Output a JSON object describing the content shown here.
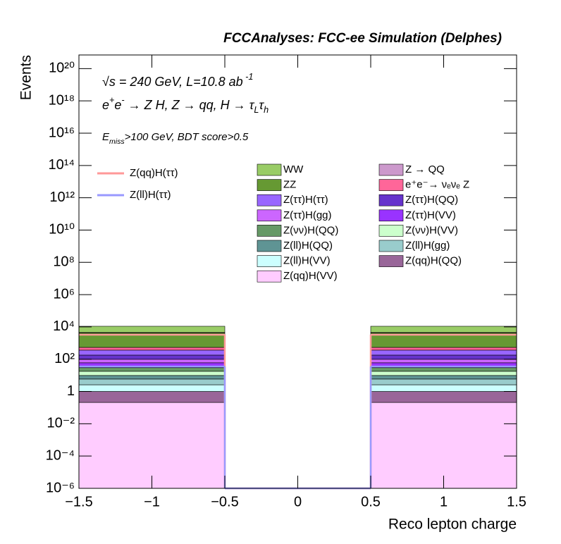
{
  "chart_data": {
    "type": "stacked_histogram",
    "title": "FCCAnalyses: FCC-ee Simulation (Delphes)",
    "annotations": [
      [
        {
          "text": "√s = 240 GeV, L=10.8 ab"
        },
        {
          "text": " -1",
          "sup": true
        }
      ],
      [
        {
          "text": "e"
        },
        {
          "text": "+",
          "sup": true
        },
        {
          "text": "e"
        },
        {
          "text": "-",
          "sup": true
        },
        {
          "text": " → Z H, Z  → qq, H  → τ"
        },
        {
          "text": "L",
          "sub": true
        },
        {
          "text": "τ"
        },
        {
          "text": "h",
          "sub": true
        }
      ],
      [
        {
          "text": "E"
        },
        {
          "text": "miss",
          "sub": true
        },
        {
          "text": ">100 GeV, BDT score>0.5"
        }
      ]
    ],
    "x_label": "Reco lepton charge",
    "y_label": "Events",
    "log_y": true,
    "bins": [
      -1.5,
      -0.5,
      0.5,
      1.5
    ],
    "xlim": [
      -1.5,
      1.5
    ],
    "xticks": [
      {
        "value": -1.5,
        "label": "−1.5"
      },
      {
        "value": -1,
        "label": "−1"
      },
      {
        "value": -0.5,
        "label": "−0.5"
      },
      0,
      0.5,
      1,
      1.5
    ],
    "ylim": [
      1e-06,
      7e+20
    ],
    "yticks": [
      {
        "value": 1e-06,
        "label": "10⁻⁶"
      },
      {
        "value": 0.0001,
        "label": "10⁻⁴"
      },
      {
        "value": 0.01,
        "label": "10⁻²"
      },
      1,
      {
        "value": 100,
        "label": "10²"
      },
      {
        "value": 10000,
        "label": "10⁴"
      },
      {
        "value": 1000000.0,
        "label": "10⁶"
      },
      {
        "value": 100000000.0,
        "label": "10⁸"
      },
      {
        "value": 10000000000.0,
        "label": "10¹⁰"
      },
      {
        "value": 1000000000000.0,
        "label": "10¹²"
      },
      {
        "value": 100000000000000.0,
        "label": "10¹⁴"
      },
      {
        "value": 1e+16,
        "label": "10¹⁶"
      },
      {
        "value": 1e+18,
        "label": "10¹⁸"
      },
      {
        "value": 1e+20,
        "label": "10²⁰"
      }
    ],
    "series": [
      {
        "name": "Z(qq)H(VV)",
        "color": "#ffccff",
        "values": [
          0.21,
          0,
          0.21
        ]
      },
      {
        "name": "Z(qq)H(QQ)",
        "color": "#996699",
        "values": [
          0.79,
          0,
          0.79
        ]
      },
      {
        "name": "Z(ll)H(VV)",
        "color": "#ccffff",
        "values": [
          1.6,
          0,
          1.6
        ]
      },
      {
        "name": "Z(ll)H(gg)",
        "color": "#99cccc",
        "values": [
          3.3,
          0,
          3.3
        ]
      },
      {
        "name": "Z(ll)H(QQ)",
        "color": "#5f9494",
        "values": [
          3.9,
          0,
          3.9
        ]
      },
      {
        "name": "Z(νν)H(VV)",
        "color": "#ccffcc",
        "values": [
          8,
          0,
          8
        ]
      },
      {
        "name": "Z(νν)H(QQ)",
        "color": "#669966",
        "values": [
          12,
          0,
          12
        ]
      },
      {
        "name": "Z(ττ)H(VV)",
        "color": "#9933ff",
        "values": [
          30,
          0,
          30
        ]
      },
      {
        "name": "Z(ττ)H(gg)",
        "color": "#cc66ff",
        "values": [
          39,
          0,
          39
        ]
      },
      {
        "name": "Z(ττ)H(QQ)",
        "color": "#6633cc",
        "values": [
          80,
          0,
          80
        ]
      },
      {
        "name": "Z(ττ)H(ττ)",
        "color": "#9966ff",
        "values": [
          185,
          0,
          185
        ]
      },
      {
        "name": "e⁺e⁻→ νₑνₑ Z",
        "color": "#ff6699",
        "values": [
          174,
          0,
          174
        ]
      },
      {
        "name": "ZZ",
        "color": "#669933",
        "values": [
          3660,
          0,
          3660
        ]
      },
      {
        "name": "Z → QQ",
        "color": "#cc99cc",
        "values": [
          276,
          0,
          276
        ]
      },
      {
        "name": "WW",
        "color": "#99cc66",
        "values": [
          6490,
          0,
          6490
        ]
      }
    ],
    "lines": [
      {
        "name": "Z(qq)H(ττ)",
        "color": "#ff9999",
        "values": [
          3300,
          0,
          3300
        ]
      },
      {
        "name": "Z(ll)H(ττ)",
        "color": "#9999ff",
        "values": [
          35,
          0,
          35
        ]
      }
    ],
    "legend_columns": 2
  }
}
